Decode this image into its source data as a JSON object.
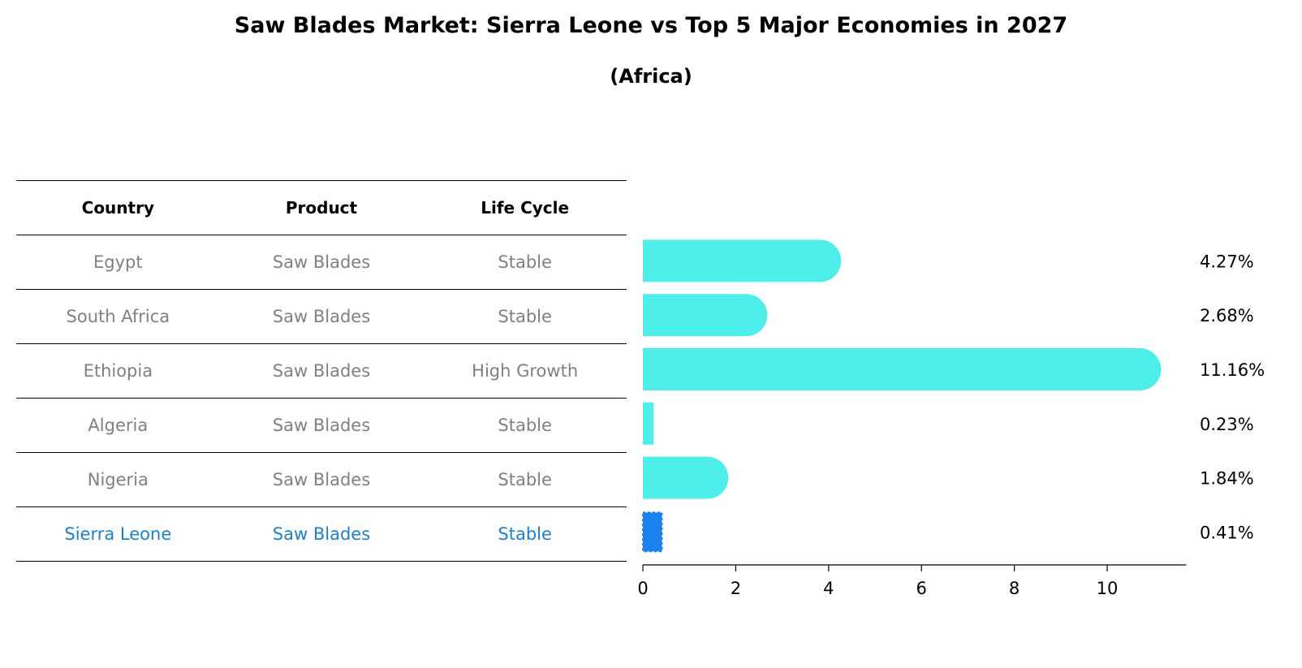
{
  "title": "Saw Blades Market: Sierra Leone vs Top 5 Major Economies in 2027",
  "subtitle": "(Africa)",
  "table": {
    "headers": [
      "Country",
      "Product",
      "Life Cycle"
    ],
    "rows": [
      {
        "country": "Egypt",
        "product": "Saw Blades",
        "life_cycle": "Stable"
      },
      {
        "country": "South Africa",
        "product": "Saw Blades",
        "life_cycle": "Stable"
      },
      {
        "country": "Ethiopia",
        "product": "Saw Blades",
        "life_cycle": "High Growth"
      },
      {
        "country": "Algeria",
        "product": "Saw Blades",
        "life_cycle": "Stable"
      },
      {
        "country": "Nigeria",
        "product": "Saw Blades",
        "life_cycle": "Stable"
      },
      {
        "country": "Sierra Leone",
        "product": "Saw Blades",
        "life_cycle": "Stable",
        "highlight": true
      }
    ]
  },
  "chart_data": {
    "type": "bar",
    "orientation": "horizontal",
    "categories": [
      "Egypt",
      "South Africa",
      "Ethiopia",
      "Algeria",
      "Nigeria",
      "Sierra Leone"
    ],
    "values": [
      4.27,
      2.68,
      11.16,
      0.23,
      1.84,
      0.41
    ],
    "value_labels": [
      "4.27%",
      "2.68%",
      "11.16%",
      "0.23%",
      "1.84%",
      "0.41%"
    ],
    "highlight_index": 5,
    "xlim": [
      0,
      11.7
    ],
    "xticks": [
      0,
      2,
      4,
      6,
      8,
      10
    ],
    "grid": false,
    "colors": {
      "bar": "#4deeea",
      "highlight": "#1a82ee",
      "highlight_text": "#1a82cc",
      "muted_text": "#808080"
    }
  }
}
